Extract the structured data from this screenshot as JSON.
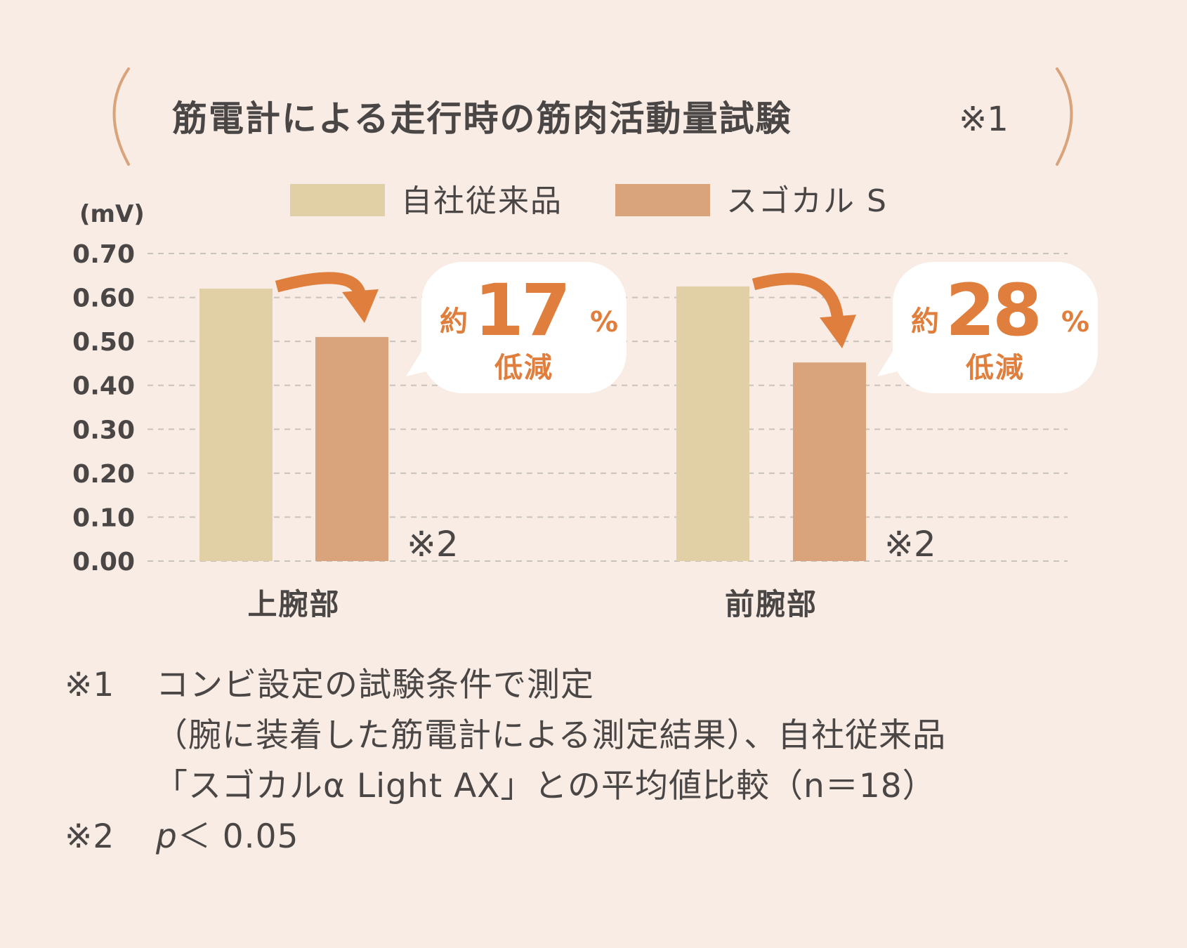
{
  "chart_data": {
    "type": "bar",
    "title": "筋電計による走行時の筋肉活動量試験",
    "title_note": "※1",
    "unit_label": "(mV)",
    "ylim": [
      0,
      0.7
    ],
    "yticks": [
      "0.70",
      "0.60",
      "0.50",
      "0.40",
      "0.30",
      "0.20",
      "0.10",
      "0.00"
    ],
    "categories": [
      "上腕部",
      "前腕部"
    ],
    "series": [
      {
        "name": "自社従来品",
        "values": [
          0.62,
          0.625
        ],
        "color": "#e1d0a6"
      },
      {
        "name": "スゴカル S",
        "values": [
          0.51,
          0.452
        ],
        "color": "#d9a37c"
      }
    ],
    "significance_marks": [
      "※2",
      "※2"
    ],
    "callouts": [
      {
        "prefix": "約",
        "number": "17",
        "percent": "%",
        "label": "低減"
      },
      {
        "prefix": "約",
        "number": "28",
        "percent": "%",
        "label": "低減"
      }
    ],
    "grid": true,
    "legend_position": "top-center",
    "accent_color": "#e07f3d",
    "bracket_color": "#d9a37c",
    "text_color": "#4a4645",
    "background": "#f8ece4"
  },
  "footnotes": {
    "n1_mark": "※1",
    "n1_line1": "コンビ設定の試験条件で測定",
    "n1_line2": "（腕に装着した筋電計による測定結果）、自社従来品",
    "n1_line3": "「スゴカルα Light AX」との平均値比較（n＝18）",
    "n2_mark": "※2",
    "n2_p": "p",
    "n2_rest": " ＜ 0.05"
  }
}
